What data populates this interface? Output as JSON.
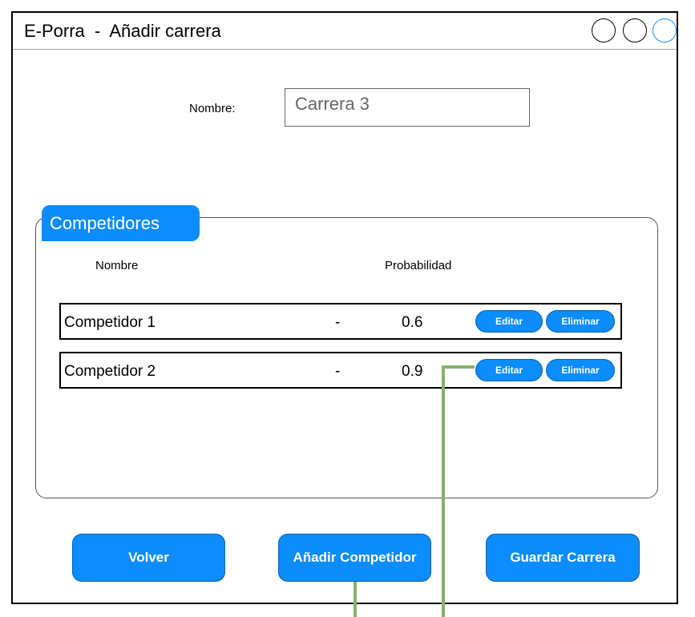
{
  "window": {
    "title": "E-Porra  -  Añadir carrera",
    "controls": [
      "circle-button",
      "circle-button",
      "circle-button"
    ]
  },
  "form": {
    "name_label": "Nombre:",
    "name_value": "Carrera 3"
  },
  "competitors": {
    "section_title": "Competidores",
    "columns": [
      "Nombre",
      "Probabilidad"
    ],
    "rows": [
      {
        "name": "Competidor 1",
        "separator": "-",
        "probability": "0.6",
        "edit_label": "Editar",
        "delete_label": "Eliminar"
      },
      {
        "name": "Competidor 2",
        "separator": "-",
        "probability": "0.9",
        "edit_label": "Editar",
        "delete_label": "Eliminar"
      }
    ]
  },
  "actions": {
    "back_label": "Volver",
    "add_label": "Añadir Competidor",
    "save_label": "Guardar Carrera"
  },
  "colors": {
    "accent": "#0b8cff",
    "annotation_line": "#82b366"
  }
}
